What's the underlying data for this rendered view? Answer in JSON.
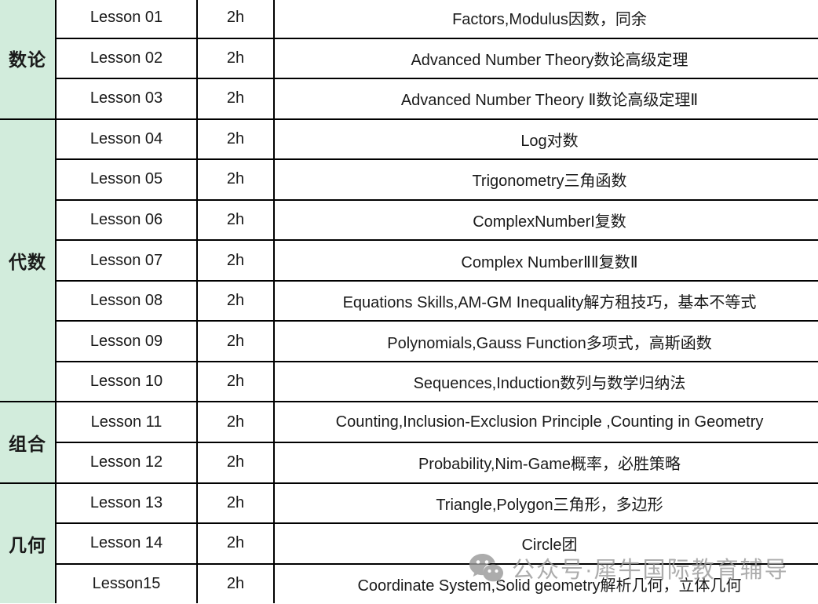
{
  "colors": {
    "category_bg": "#d2ecdc",
    "border": "#000000",
    "text": "#1a1a1a",
    "watermark": "#9b9b9b"
  },
  "watermark": {
    "icon": "wechat-icon",
    "text": "公众号·犀牛国际教育辅导"
  },
  "table": {
    "groups": [
      {
        "label": "数论",
        "rowspan": 3
      },
      {
        "label": "代数",
        "rowspan": 7
      },
      {
        "label": "组合",
        "rowspan": 2
      },
      {
        "label": "几何",
        "rowspan": 3
      }
    ],
    "rows": [
      {
        "lesson": "Lesson 01",
        "duration": "2h",
        "topic": "Factors,Modulus因数，同余"
      },
      {
        "lesson": "Lesson 02",
        "duration": "2h",
        "topic": "Advanced Number Theory数论高级定理"
      },
      {
        "lesson": "Lesson 03",
        "duration": "2h",
        "topic": "Advanced Number Theory Ⅱ数论高级定理Ⅱ"
      },
      {
        "lesson": "Lesson 04",
        "duration": "2h",
        "topic": "Log对数"
      },
      {
        "lesson": "Lesson 05",
        "duration": "2h",
        "topic": "Trigonometry三角函数"
      },
      {
        "lesson": "Lesson 06",
        "duration": "2h",
        "topic": "ComplexNumberI复数"
      },
      {
        "lesson": "Lesson 07",
        "duration": "2h",
        "topic": "Complex NumberⅡⅡ复数Ⅱ"
      },
      {
        "lesson": "Lesson 08",
        "duration": "2h",
        "topic": "Equations Skills,AM-GM Inequality解方租技巧，基本不等式"
      },
      {
        "lesson": "Lesson 09",
        "duration": "2h",
        "topic": "Polynomials,Gauss Function多项式，高斯函数"
      },
      {
        "lesson": "Lesson 10",
        "duration": "2h",
        "topic": "Sequences,Induction数列与数学归纳法"
      },
      {
        "lesson": "Lesson 11",
        "duration": "2h",
        "topic": "Counting,Inclusion-Exclusion Principle ,Counting in Geometry"
      },
      {
        "lesson": "Lesson 12",
        "duration": "2h",
        "topic": "Probability,Nim-Game概率，必胜策略"
      },
      {
        "lesson": "Lesson 13",
        "duration": "2h",
        "topic": "Triangle,Polygon三角形，多边形"
      },
      {
        "lesson": "Lesson 14",
        "duration": "2h",
        "topic": "Circle团"
      },
      {
        "lesson": "Lesson15",
        "duration": "2h",
        "topic": "Coordinate System,Solid geometry解析几何，立体几何"
      }
    ]
  }
}
